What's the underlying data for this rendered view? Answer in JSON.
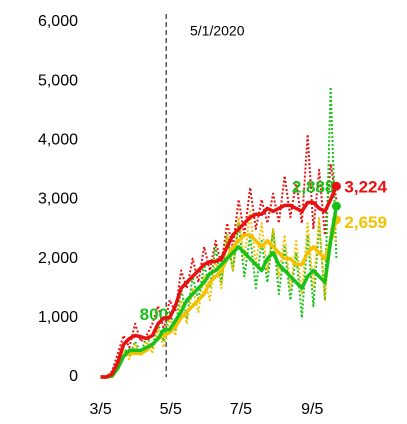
{
  "chart_data": {
    "type": "line",
    "annotation": "5/1/2020",
    "x": [
      "3/5",
      "3/10",
      "3/15",
      "3/20",
      "3/25",
      "3/30",
      "4/4",
      "4/9",
      "4/14",
      "4/19",
      "4/24",
      "4/29",
      "5/4",
      "5/9",
      "5/14",
      "5/19",
      "5/24",
      "5/29",
      "6/3",
      "6/8",
      "6/13",
      "6/18",
      "6/23",
      "6/28",
      "7/3",
      "7/8",
      "7/13",
      "7/18",
      "7/23",
      "7/28",
      "8/2",
      "8/7",
      "8/12",
      "8/17",
      "8/22",
      "8/27",
      "9/1",
      "9/6",
      "9/11",
      "9/16",
      "9/21",
      "9/26"
    ],
    "xlim": [
      "3/1",
      "9/30"
    ],
    "xticks": [
      "3/5",
      "5/5",
      "7/5",
      "9/5"
    ],
    "ylim": [
      0,
      6000
    ],
    "yticks": [
      0,
      {
        "value": 1000,
        "label": "1,000"
      },
      {
        "value": 2000,
        "label": "2,000"
      },
      {
        "value": 3000,
        "label": "3,000"
      },
      {
        "value": 4000,
        "label": "4,000"
      },
      {
        "value": 5000,
        "label": "5,000"
      },
      {
        "value": 6000,
        "label": "6,000"
      }
    ],
    "series": [
      {
        "color": "#e81010",
        "style": "dotted",
        "values": [
          0,
          0,
          100,
          400,
          700,
          500,
          900,
          600,
          700,
          900,
          1200,
          800,
          1300,
          1100,
          1800,
          1500,
          2000,
          1600,
          2200,
          1800,
          2300,
          1900,
          2600,
          2200,
          3000,
          2400,
          3200,
          2500,
          3000,
          2600,
          3100,
          2600,
          3400,
          2700,
          3300,
          2600,
          4100,
          2500,
          3500,
          2400,
          3600,
          3000
        ]
      },
      {
        "color": "#18c018",
        "style": "dotted",
        "values": [
          0,
          0,
          50,
          300,
          500,
          350,
          600,
          400,
          700,
          500,
          900,
          600,
          1100,
          800,
          1500,
          1000,
          1700,
          1300,
          1900,
          1500,
          2200,
          1600,
          2400,
          1800,
          2600,
          1700,
          2400,
          1500,
          2300,
          1600,
          2500,
          1400,
          2200,
          1300,
          2100,
          1000,
          2400,
          1200,
          2600,
          1300,
          4900,
          2000
        ]
      },
      {
        "color": "#f5c000",
        "style": "dotted",
        "values": [
          0,
          0,
          30,
          250,
          450,
          300,
          550,
          350,
          600,
          400,
          800,
          500,
          1000,
          700,
          1300,
          900,
          1500,
          1100,
          1700,
          1300,
          2000,
          1500,
          2400,
          1800,
          2700,
          2000,
          2800,
          1900,
          2600,
          1800,
          2500,
          1700,
          2400,
          1500,
          2300,
          1400,
          2600,
          1500,
          2700,
          1300,
          2500,
          2300
        ]
      },
      {
        "color": "#f5c000",
        "style": "solid",
        "values": [
          0,
          0,
          10,
          150,
          350,
          400,
          400,
          400,
          450,
          550,
          650,
          700,
          750,
          850,
          1000,
          1100,
          1200,
          1300,
          1400,
          1600,
          1700,
          1800,
          2000,
          2200,
          2300,
          2400,
          2400,
          2300,
          2200,
          2300,
          2200,
          2100,
          2000,
          2000,
          1900,
          1900,
          2100,
          2200,
          2100,
          2000,
          2300,
          2659
        ],
        "value_labels": [
          null,
          null,
          null,
          null,
          null,
          null,
          null,
          null,
          null,
          null,
          null,
          null,
          null,
          null,
          null,
          null,
          null,
          null,
          null,
          null,
          null,
          null,
          null,
          null,
          null,
          null,
          null,
          null,
          null,
          null,
          null,
          null,
          null,
          null,
          null,
          null,
          null,
          null,
          null,
          null,
          null,
          "2,659"
        ]
      },
      {
        "color": "#18c018",
        "style": "solid",
        "values": [
          0,
          0,
          20,
          150,
          350,
          450,
          450,
          450,
          500,
          550,
          650,
          800,
          800,
          950,
          1100,
          1300,
          1400,
          1500,
          1600,
          1750,
          1800,
          1900,
          2000,
          2100,
          2200,
          2100,
          2000,
          1900,
          1800,
          2000,
          2100,
          1900,
          1800,
          1700,
          1600,
          1500,
          1700,
          1800,
          1700,
          1600,
          2300,
          2888
        ],
        "value_labels": [
          null,
          null,
          null,
          null,
          null,
          null,
          null,
          null,
          null,
          null,
          null,
          "800",
          null,
          null,
          null,
          null,
          null,
          null,
          null,
          null,
          null,
          null,
          null,
          null,
          null,
          null,
          null,
          null,
          null,
          null,
          null,
          null,
          null,
          null,
          null,
          null,
          null,
          null,
          null,
          null,
          null,
          "2,888"
        ]
      },
      {
        "color": "#e81010",
        "style": "solid",
        "values": [
          0,
          0,
          50,
          250,
          550,
          650,
          700,
          680,
          650,
          700,
          900,
          1000,
          1000,
          1200,
          1500,
          1600,
          1700,
          1800,
          1900,
          1950,
          1950,
          2000,
          2200,
          2400,
          2500,
          2600,
          2700,
          2750,
          2750,
          2850,
          2800,
          2850,
          2900,
          2900,
          2850,
          2800,
          2950,
          2950,
          2850,
          2800,
          3000,
          3224
        ],
        "value_labels": [
          null,
          null,
          null,
          null,
          null,
          null,
          null,
          null,
          null,
          null,
          null,
          null,
          null,
          null,
          null,
          null,
          null,
          null,
          null,
          null,
          null,
          null,
          null,
          null,
          null,
          null,
          null,
          null,
          null,
          null,
          null,
          null,
          null,
          null,
          null,
          null,
          null,
          null,
          null,
          null,
          null,
          "3,224"
        ]
      }
    ]
  }
}
